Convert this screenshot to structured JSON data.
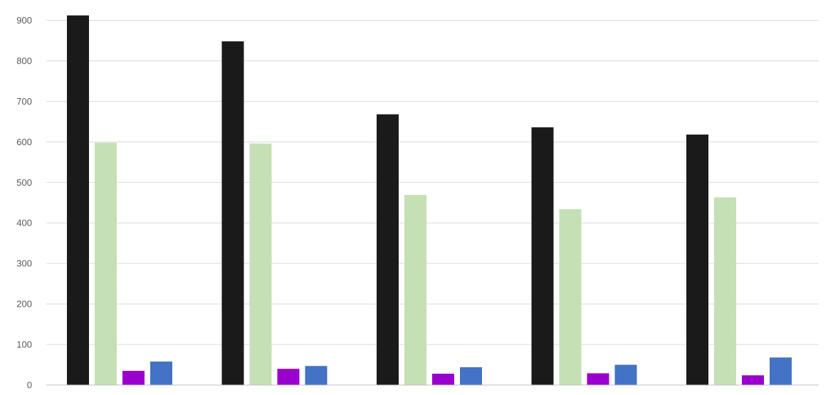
{
  "chart_data": {
    "type": "bar",
    "categories": [
      "",
      "",
      "",
      "",
      ""
    ],
    "series": [
      {
        "color": "#1a1a1a",
        "values": [
          912,
          848,
          668,
          636,
          618
        ]
      },
      {
        "color": "#c5e0b4",
        "values": [
          598,
          596,
          469,
          434,
          463
        ]
      },
      {
        "color": "#9900cc",
        "values": [
          35,
          40,
          28,
          29,
          24
        ]
      },
      {
        "color": "#4472c4",
        "values": [
          58,
          47,
          44,
          50,
          68
        ]
      }
    ],
    "ylim": [
      0,
      900
    ],
    "yticks": [
      0,
      100,
      200,
      300,
      400,
      500,
      600,
      700,
      800,
      900
    ],
    "grid": true,
    "legend": "none",
    "title": "",
    "xlabel": "",
    "ylabel": ""
  }
}
